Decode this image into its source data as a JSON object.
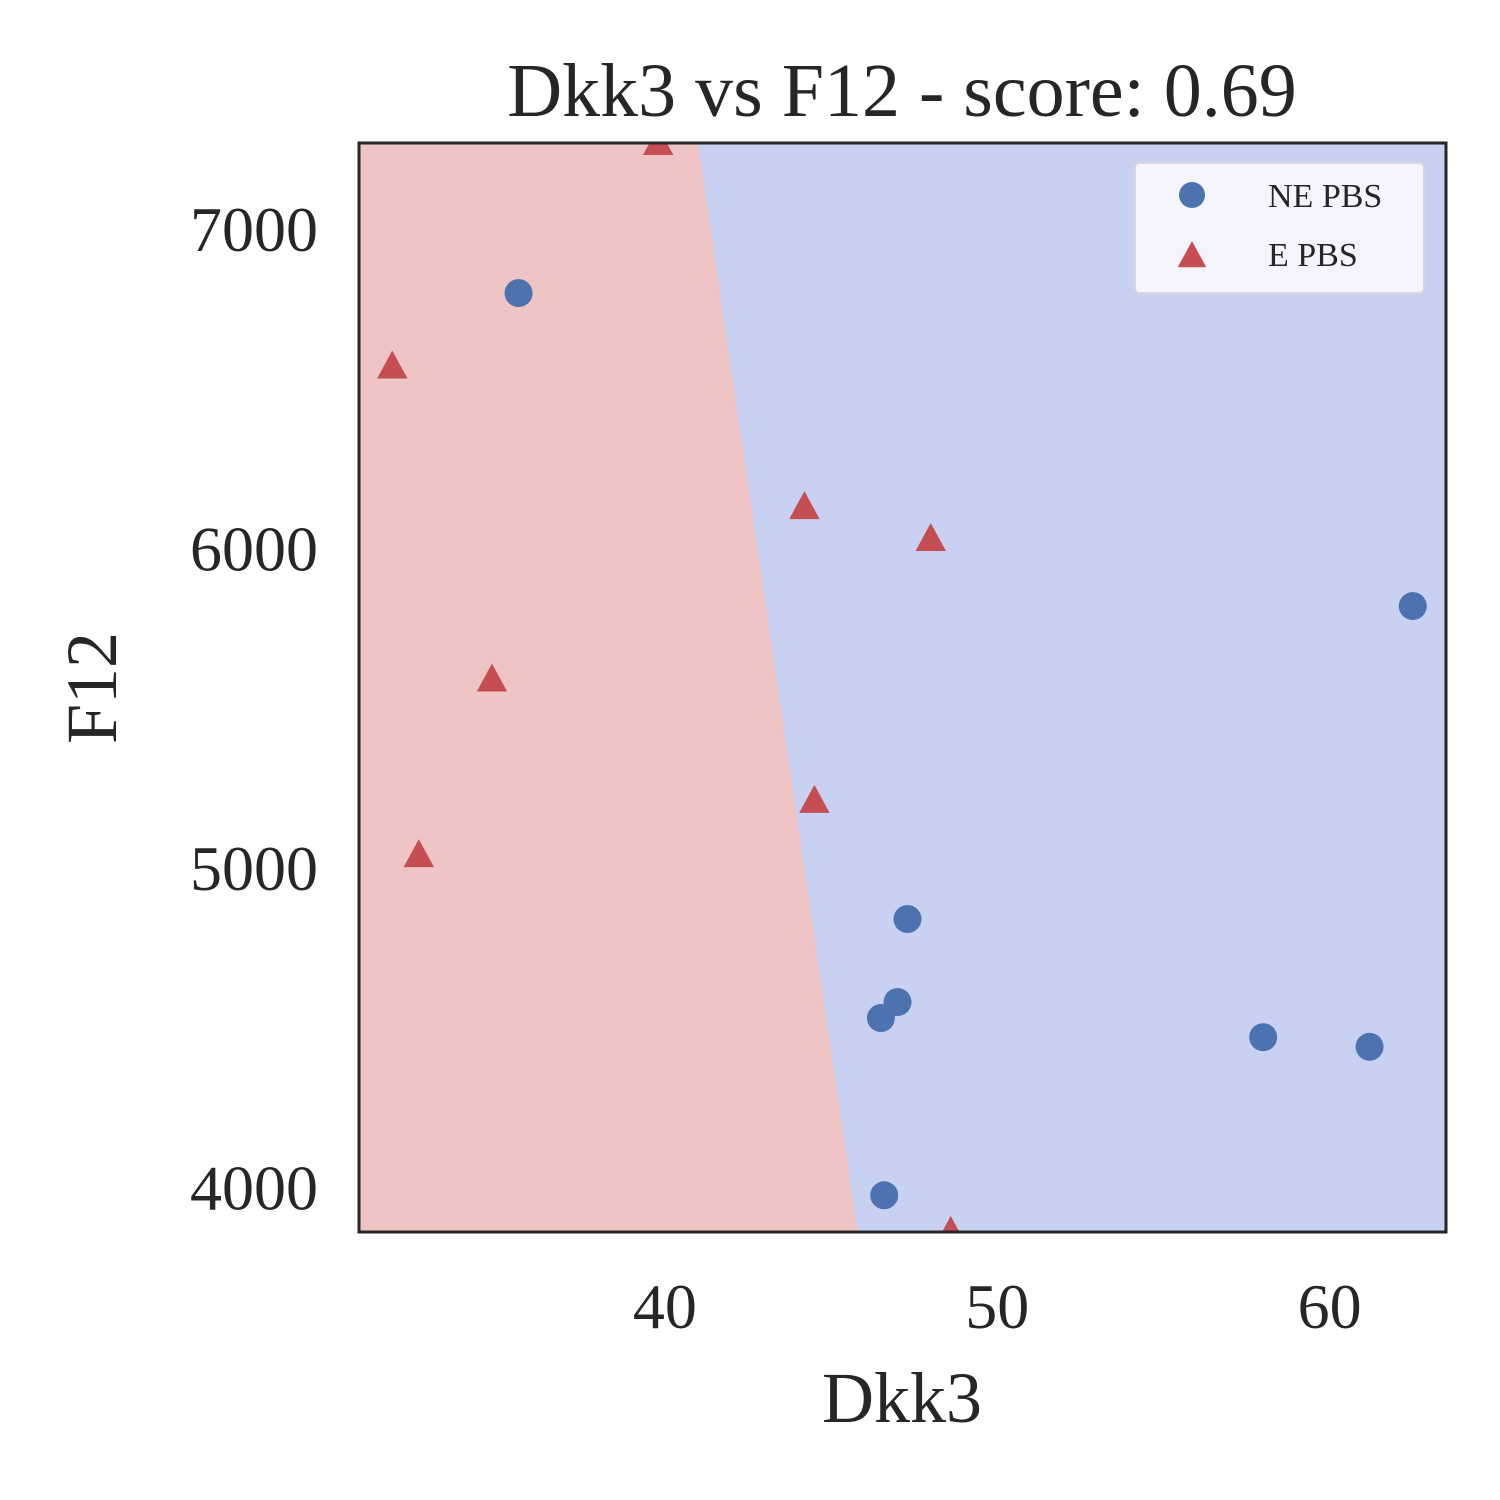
{
  "chart_data": {
    "type": "scatter",
    "title": "Dkk3 vs F12 - score: 0.69",
    "xlabel": "Dkk3",
    "ylabel": "F12",
    "xlim": [
      30.8,
      63.5
    ],
    "ylim": [
      3860,
      7270
    ],
    "xticks": [
      40,
      50,
      60
    ],
    "yticks": [
      4000,
      5000,
      6000,
      7000
    ],
    "grid": false,
    "legend_position": "top-right",
    "decision_boundary": {
      "points": [
        [
          41.0,
          7270
        ],
        [
          45.8,
          3860
        ]
      ],
      "left_region_color": "#eec4c4",
      "right_region_color": "#c8d1f1"
    },
    "series": [
      {
        "name": "NE PBS",
        "marker": "circle",
        "color": "#4c72b0",
        "points": [
          [
            35.6,
            6800
          ],
          [
            46.5,
            4530
          ],
          [
            47.0,
            4580
          ],
          [
            47.3,
            4840
          ],
          [
            46.6,
            3975
          ],
          [
            58.0,
            4470
          ],
          [
            61.2,
            4440
          ],
          [
            62.5,
            5820
          ]
        ]
      },
      {
        "name": "E PBS",
        "marker": "triangle",
        "color": "#c44e52",
        "points": [
          [
            39.8,
            7270
          ],
          [
            31.8,
            6570
          ],
          [
            34.8,
            5590
          ],
          [
            32.6,
            5040
          ],
          [
            44.2,
            6130
          ],
          [
            44.5,
            5210
          ],
          [
            48.0,
            6030
          ],
          [
            48.6,
            3860
          ]
        ]
      }
    ]
  }
}
